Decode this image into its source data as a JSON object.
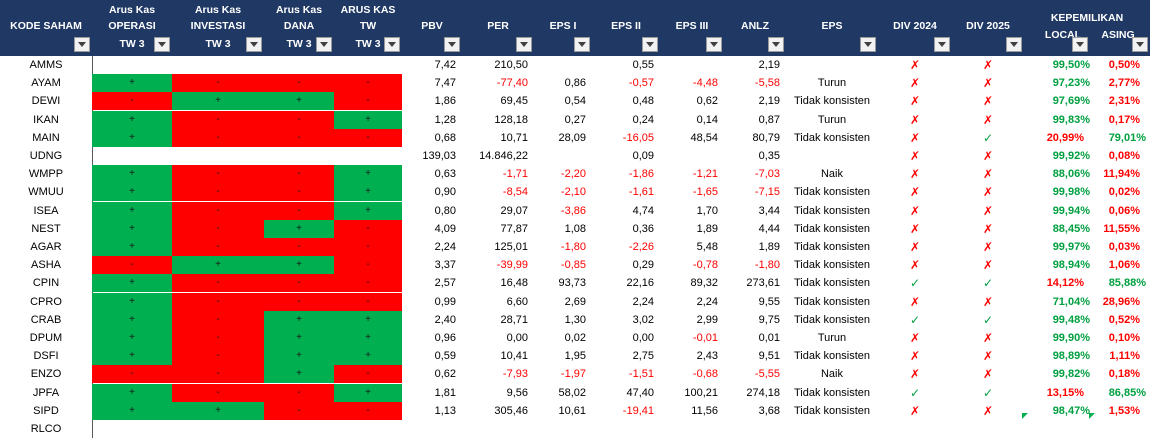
{
  "header": {
    "kode_saham": "KODE SAHAM",
    "ak_operasi": [
      "Arus Kas",
      "OPERASI",
      "TW 3"
    ],
    "ak_investasi": [
      "Arus Kas",
      "INVESTASI",
      "TW 3"
    ],
    "ak_dana": [
      "Arus Kas",
      "DANA",
      "TW 3"
    ],
    "ak_tw": [
      "ARUS KAS",
      "TW",
      "TW 3"
    ],
    "pbv": "PBV",
    "per": "PER",
    "eps1": "EPS I",
    "eps2": "EPS II",
    "eps3": "EPS III",
    "anlz": "ANLZ",
    "eps": "EPS",
    "div2024": "DIV 2024",
    "div2025": "DIV 2025",
    "kepemilikan": "KEPEMILIKAN",
    "local": "LOCAL",
    "asing": "ASING"
  },
  "colors": {
    "header_bg": "#1f3864",
    "green": "#00b050",
    "red": "#ff0000"
  },
  "rows": [
    {
      "code": "AMMS",
      "cf": [
        "",
        "",
        "",
        ""
      ],
      "pbv": "7,42",
      "per": "210,50",
      "e1": "",
      "e2": "0,55",
      "e3": "",
      "anlz": "2,19",
      "eps": "",
      "d24": "x",
      "d25": "x",
      "local": "99,50%",
      "asing": "0,50%"
    },
    {
      "code": "AYAM",
      "cf": [
        "g",
        "r",
        "r",
        "r"
      ],
      "pbv": "7,47",
      "per": "-77,40",
      "e1": "0,86",
      "e2": "-0,57",
      "e3": "-4,48",
      "anlz": "-5,58",
      "eps": "Turun",
      "d24": "x",
      "d25": "x",
      "local": "97,23%",
      "asing": "2,77%"
    },
    {
      "code": "DEWI",
      "cf": [
        "r",
        "g",
        "g",
        "r"
      ],
      "pbv": "1,86",
      "per": "69,45",
      "e1": "0,54",
      "e2": "0,48",
      "e3": "0,62",
      "anlz": "2,19",
      "eps": "Tidak konsisten",
      "d24": "x",
      "d25": "x",
      "local": "97,69%",
      "asing": "2,31%"
    },
    {
      "code": "IKAN",
      "cf": [
        "g",
        "r",
        "r",
        "g"
      ],
      "pbv": "1,28",
      "per": "128,18",
      "e1": "0,27",
      "e2": "0,24",
      "e3": "0,14",
      "anlz": "0,87",
      "eps": "Turun",
      "d24": "x",
      "d25": "x",
      "local": "99,83%",
      "asing": "0,17%"
    },
    {
      "code": "MAIN",
      "cf": [
        "g",
        "r",
        "r",
        "r"
      ],
      "pbv": "0,68",
      "per": "10,71",
      "e1": "28,09",
      "e2": "-16,05",
      "e3": "48,54",
      "anlz": "80,79",
      "eps": "Tidak konsisten",
      "d24": "x",
      "d25": "v",
      "local": "20,99%",
      "asing": "79,01%"
    },
    {
      "code": "UDNG",
      "cf": [
        "",
        "",
        "",
        ""
      ],
      "pbv": "139,03",
      "per": "14.846,22",
      "e1": "",
      "e2": "0,09",
      "e3": "",
      "anlz": "0,35",
      "eps": "",
      "d24": "x",
      "d25": "x",
      "local": "99,92%",
      "asing": "0,08%"
    },
    {
      "code": "WMPP",
      "cf": [
        "g",
        "r",
        "r",
        "g"
      ],
      "pbv": "0,63",
      "per": "-1,71",
      "e1": "-2,20",
      "e2": "-1,86",
      "e3": "-1,21",
      "anlz": "-7,03",
      "eps": "Naik",
      "d24": "x",
      "d25": "x",
      "local": "88,06%",
      "asing": "11,94%"
    },
    {
      "code": "WMUU",
      "cf": [
        "g",
        "r",
        "r",
        "g"
      ],
      "pbv": "0,90",
      "per": "-8,54",
      "e1": "-2,10",
      "e2": "-1,61",
      "e3": "-1,65",
      "anlz": "-7,15",
      "eps": "Tidak konsisten",
      "d24": "x",
      "d25": "x",
      "local": "99,98%",
      "asing": "0,02%"
    },
    {
      "code": "ISEA",
      "cf": [
        "g",
        "r",
        "r",
        "g"
      ],
      "pbv": "0,80",
      "per": "29,07",
      "e1": "-3,86",
      "e2": "4,74",
      "e3": "1,70",
      "anlz": "3,44",
      "eps": "Tidak konsisten",
      "d24": "x",
      "d25": "x",
      "local": "99,94%",
      "asing": "0,06%"
    },
    {
      "code": "NEST",
      "cf": [
        "g",
        "r",
        "g",
        "r"
      ],
      "pbv": "4,09",
      "per": "77,87",
      "e1": "1,08",
      "e2": "0,36",
      "e3": "1,89",
      "anlz": "4,44",
      "eps": "Tidak konsisten",
      "d24": "x",
      "d25": "x",
      "local": "88,45%",
      "asing": "11,55%"
    },
    {
      "code": "AGAR",
      "cf": [
        "g",
        "r",
        "r",
        "r"
      ],
      "pbv": "2,24",
      "per": "125,01",
      "e1": "-1,80",
      "e2": "-2,26",
      "e3": "5,48",
      "anlz": "1,89",
      "eps": "Tidak konsisten",
      "d24": "x",
      "d25": "x",
      "local": "99,97%",
      "asing": "0,03%"
    },
    {
      "code": "ASHA",
      "cf": [
        "r",
        "g",
        "g",
        "r"
      ],
      "pbv": "3,37",
      "per": "-39,99",
      "e1": "-0,85",
      "e2": "0,29",
      "e3": "-0,78",
      "anlz": "-1,80",
      "eps": "Tidak konsisten",
      "d24": "x",
      "d25": "x",
      "local": "98,94%",
      "asing": "1,06%"
    },
    {
      "code": "CPIN",
      "cf": [
        "g",
        "r",
        "r",
        "r"
      ],
      "pbv": "2,57",
      "per": "16,48",
      "e1": "93,73",
      "e2": "22,16",
      "e3": "89,32",
      "anlz": "273,61",
      "eps": "Tidak konsisten",
      "d24": "v",
      "d25": "v",
      "local": "14,12%",
      "asing": "85,88%"
    },
    {
      "code": "CPRO",
      "cf": [
        "g",
        "r",
        "r",
        "r"
      ],
      "pbv": "0,99",
      "per": "6,60",
      "e1": "2,69",
      "e2": "2,24",
      "e3": "2,24",
      "anlz": "9,55",
      "eps": "Tidak konsisten",
      "d24": "x",
      "d25": "x",
      "local": "71,04%",
      "asing": "28,96%"
    },
    {
      "code": "CRAB",
      "cf": [
        "g",
        "r",
        "g",
        "g"
      ],
      "pbv": "2,40",
      "per": "28,71",
      "e1": "1,30",
      "e2": "3,02",
      "e3": "2,99",
      "anlz": "9,75",
      "eps": "Tidak konsisten",
      "d24": "v",
      "d25": "v",
      "local": "99,48%",
      "asing": "0,52%"
    },
    {
      "code": "DPUM",
      "cf": [
        "g",
        "r",
        "g",
        "g"
      ],
      "pbv": "0,96",
      "per": "0,00",
      "e1": "0,02",
      "e2": "0,00",
      "e3": "-0,01",
      "anlz": "0,01",
      "eps": "Turun",
      "d24": "x",
      "d25": "x",
      "local": "99,90%",
      "asing": "0,10%"
    },
    {
      "code": "DSFI",
      "cf": [
        "g",
        "r",
        "g",
        "g"
      ],
      "pbv": "0,59",
      "per": "10,41",
      "e1": "1,95",
      "e2": "2,75",
      "e3": "2,43",
      "anlz": "9,51",
      "eps": "Tidak konsisten",
      "d24": "x",
      "d25": "x",
      "local": "98,89%",
      "asing": "1,11%"
    },
    {
      "code": "ENZO",
      "cf": [
        "r",
        "r",
        "g",
        "r"
      ],
      "pbv": "0,62",
      "per": "-7,93",
      "e1": "-1,97",
      "e2": "-1,51",
      "e3": "-0,68",
      "anlz": "-5,55",
      "eps": "Naik",
      "d24": "x",
      "d25": "x",
      "local": "99,82%",
      "asing": "0,18%"
    },
    {
      "code": "JPFA",
      "cf": [
        "g",
        "r",
        "r",
        "g"
      ],
      "pbv": "1,81",
      "per": "9,56",
      "e1": "58,02",
      "e2": "47,40",
      "e3": "100,21",
      "anlz": "274,18",
      "eps": "Tidak konsisten",
      "d24": "v",
      "d25": "v",
      "local": "13,15%",
      "asing": "86,85%"
    },
    {
      "code": "SIPD",
      "cf": [
        "g",
        "g",
        "r",
        "r"
      ],
      "pbv": "1,13",
      "per": "305,46",
      "e1": "10,61",
      "e2": "-19,41",
      "e3": "11,56",
      "anlz": "3,68",
      "eps": "Tidak konsisten",
      "d24": "x",
      "d25": "x",
      "local": "98,47%",
      "asing": "1,53%"
    },
    {
      "code": "RLCO",
      "cf": [
        "",
        "",
        "",
        ""
      ],
      "pbv": "",
      "per": "",
      "e1": "",
      "e2": "",
      "e3": "",
      "anlz": "",
      "eps": "",
      "d24": "",
      "d25": "",
      "local": "",
      "asing": ""
    }
  ],
  "symbols": {
    "positive": "+",
    "negative": "-",
    "cross": "✗",
    "check": "✓"
  }
}
